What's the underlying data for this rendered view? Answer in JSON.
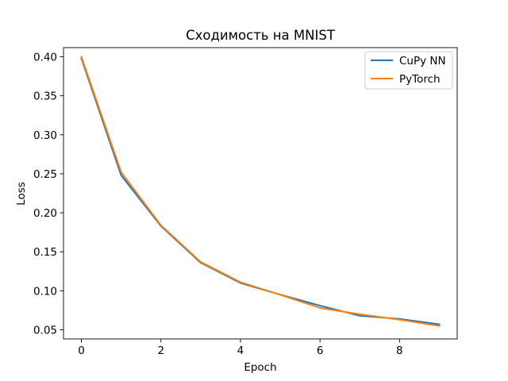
{
  "chart_data": {
    "type": "line",
    "title": "Сходимость на MNIST",
    "xlabel": "Epoch",
    "ylabel": "Loss",
    "xlim": [
      -0.45,
      9.45
    ],
    "ylim": [
      0.0383,
      0.4117
    ],
    "grid": false,
    "legend_position": "top-right",
    "x": [
      0,
      1,
      2,
      3,
      4,
      5,
      6,
      7,
      8,
      9
    ],
    "x_ticks": [
      0,
      2,
      4,
      6,
      8
    ],
    "x_tick_labels": [
      "0",
      "2",
      "4",
      "6",
      "8"
    ],
    "y_ticks": [
      0.05,
      0.1,
      0.15,
      0.2,
      0.25,
      0.3,
      0.35,
      0.4
    ],
    "y_tick_labels": [
      "0.05",
      "0.10",
      "0.15",
      "0.20",
      "0.25",
      "0.30",
      "0.35",
      "0.40"
    ],
    "series": [
      {
        "name": "CuPy NN",
        "color": "#1f77b4",
        "values": [
          0.398,
          0.248,
          0.183,
          0.136,
          0.11,
          0.095,
          0.081,
          0.068,
          0.064,
          0.057
        ]
      },
      {
        "name": "PyTorch",
        "color": "#ff7f0e",
        "values": [
          0.4,
          0.252,
          0.184,
          0.137,
          0.111,
          0.095,
          0.078,
          0.07,
          0.063,
          0.055
        ]
      }
    ]
  }
}
